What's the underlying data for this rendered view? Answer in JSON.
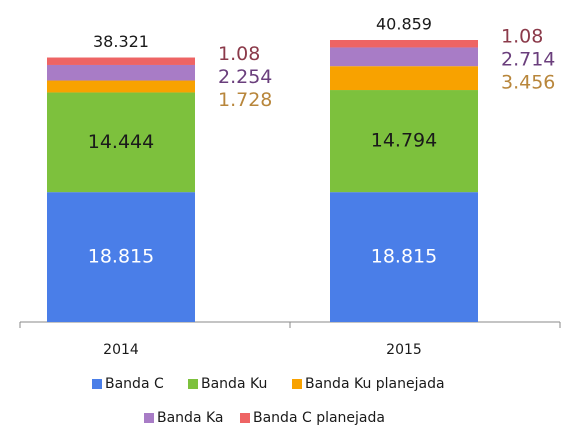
{
  "chart_data": {
    "type": "stacked_bar",
    "categories": [
      "2014",
      "2015"
    ],
    "totals": [
      38.321,
      40.859
    ],
    "series": [
      {
        "name": "Banda C",
        "color": "#4a7ee8",
        "label_color": "#ffffff",
        "values": [
          18.815,
          18.815
        ]
      },
      {
        "name": "Banda Ku",
        "color": "#7dc13d",
        "label_color": "#1a1a1a",
        "values": [
          14.444,
          14.794
        ]
      },
      {
        "name": "Banda Ku planejada",
        "color": "#f8a200",
        "label_color": "#b8863b",
        "values": [
          1.728,
          3.456
        ]
      },
      {
        "name": "Banda Ka",
        "color": "#a87cc6",
        "label_color": "#6a3e7c",
        "values": [
          2.254,
          2.714
        ]
      },
      {
        "name": "Banda C planejada",
        "color": "#ee6464",
        "label_color": "#8b3a4a",
        "values": [
          1.08,
          1.08
        ]
      }
    ]
  }
}
